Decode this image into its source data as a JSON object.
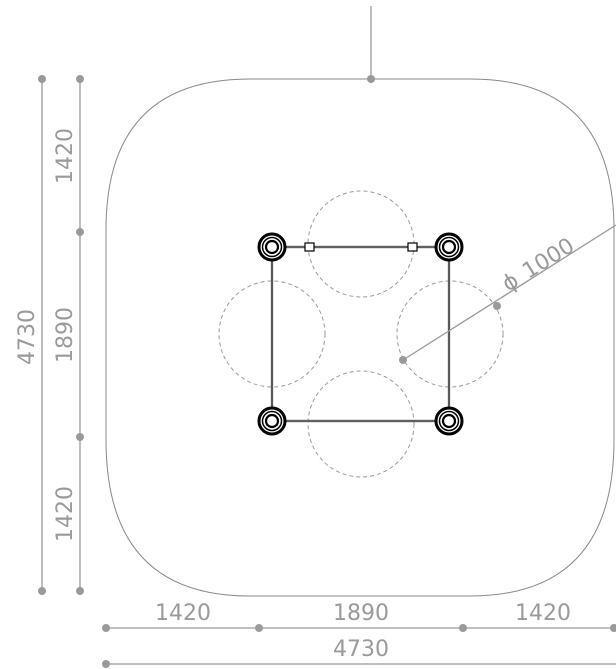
{
  "dimensions": {
    "left_outer_total": "4730",
    "left_inner_top": "1420",
    "left_inner_middle": "1890",
    "left_inner_bottom": "1420",
    "bottom_left": "1420",
    "bottom_middle": "1890",
    "bottom_right": "1420",
    "bottom_total": "4730"
  },
  "callout": {
    "symbol": "ϕ",
    "diameter": "1000"
  }
}
